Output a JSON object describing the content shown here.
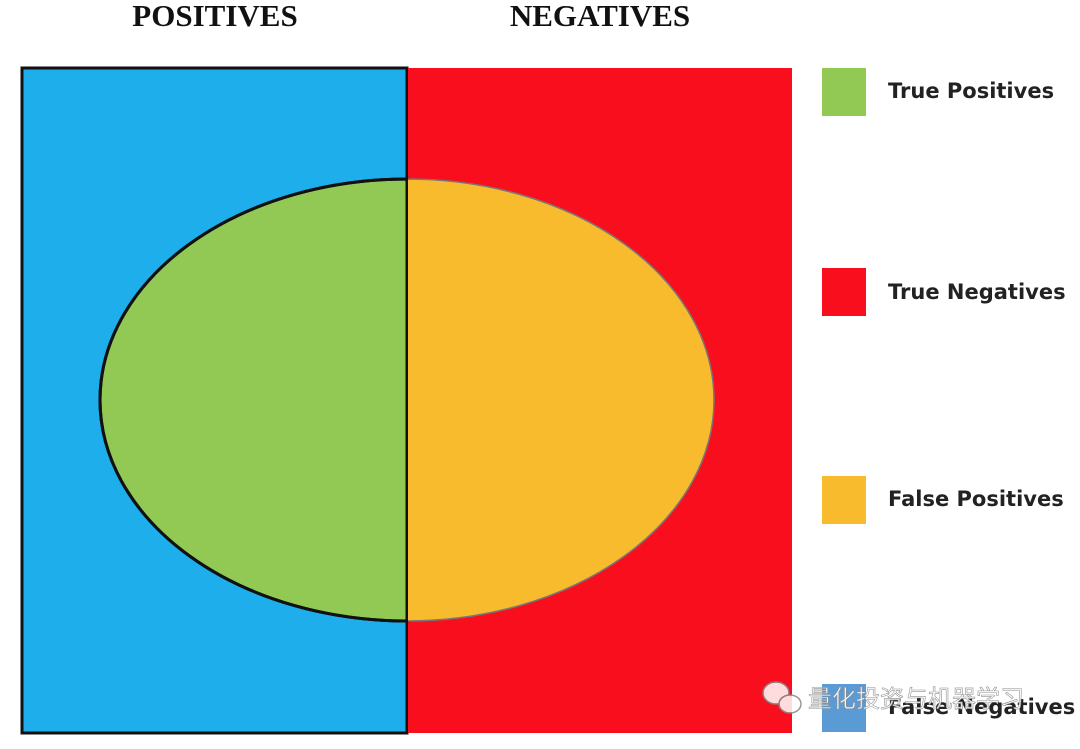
{
  "headers": {
    "left": "POSITIVES",
    "right": "NEGATIVES"
  },
  "legend": [
    {
      "label": "True Positives"
    },
    {
      "label": "True Negatives"
    },
    {
      "label": "False Positives"
    },
    {
      "label": "False Negatives"
    }
  ],
  "watermark": "量化投资与机器学习"
}
